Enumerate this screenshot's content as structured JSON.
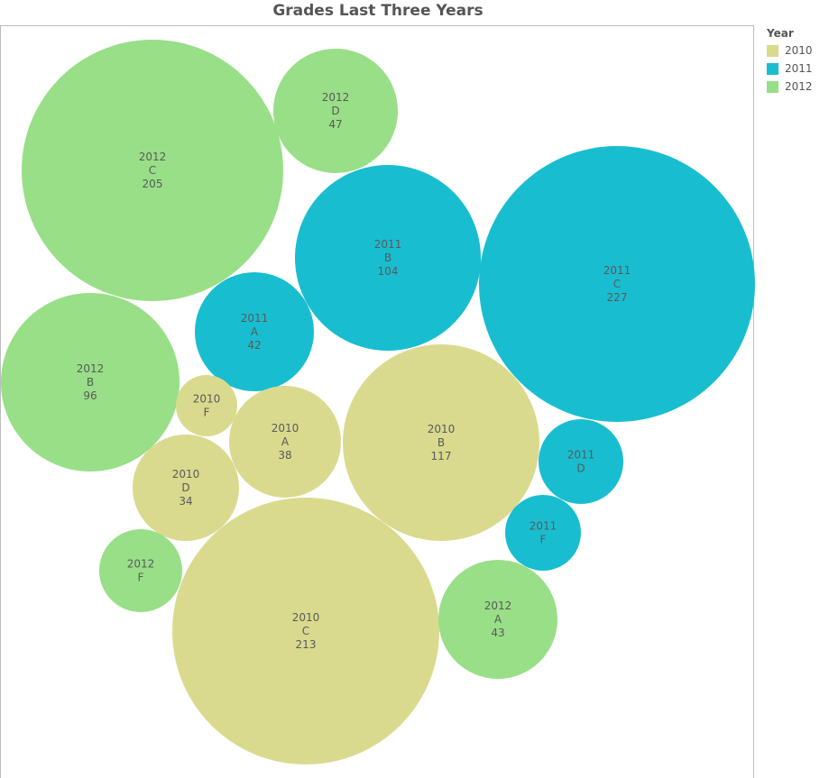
{
  "chart_data": {
    "type": "bubble",
    "title": "Grades Last Three Years",
    "legend": {
      "title": "Year",
      "position": "right",
      "items": [
        {
          "label": "2010",
          "color": "#d9da8e"
        },
        {
          "label": "2011",
          "color": "#19bdd0"
        },
        {
          "label": "2012",
          "color": "#98df87"
        }
      ]
    },
    "points": [
      {
        "year": "2012",
        "grade": "C",
        "value": "205"
      },
      {
        "year": "2012",
        "grade": "D",
        "value": "47"
      },
      {
        "year": "2011",
        "grade": "B",
        "value": "104"
      },
      {
        "year": "2011",
        "grade": "C",
        "value": "227"
      },
      {
        "year": "2011",
        "grade": "A",
        "value": "42"
      },
      {
        "year": "2012",
        "grade": "B",
        "value": "96"
      },
      {
        "year": "2010",
        "grade": "F",
        "value": ""
      },
      {
        "year": "2010",
        "grade": "A",
        "value": "38"
      },
      {
        "year": "2010",
        "grade": "B",
        "value": "117"
      },
      {
        "year": "2011",
        "grade": "D",
        "value": ""
      },
      {
        "year": "2010",
        "grade": "D",
        "value": "34"
      },
      {
        "year": "2011",
        "grade": "F",
        "value": ""
      },
      {
        "year": "2012",
        "grade": "F",
        "value": ""
      },
      {
        "year": "2010",
        "grade": "C",
        "value": "213"
      },
      {
        "year": "2012",
        "grade": "A",
        "value": "43"
      }
    ]
  }
}
